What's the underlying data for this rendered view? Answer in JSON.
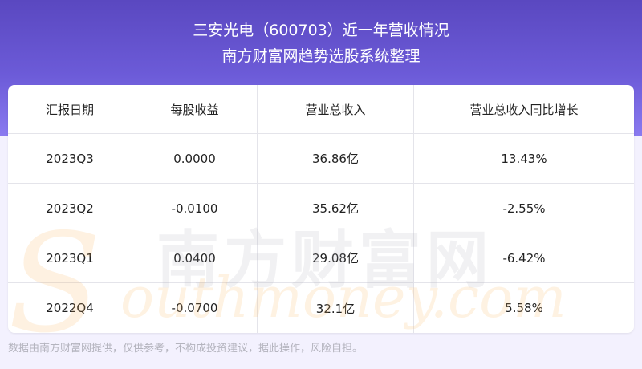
{
  "header": {
    "title_line1": "三安光电（600703）近一年营收情况",
    "title_line2": "南方财富网趋势选股系统整理"
  },
  "table": {
    "columns": [
      "汇报日期",
      "每股收益",
      "营业总收入",
      "营业总收入同比增长"
    ],
    "rows": [
      [
        "2023Q3",
        "0.0000",
        "36.86亿",
        "13.43%"
      ],
      [
        "2023Q2",
        "-0.0100",
        "35.62亿",
        "-2.55%"
      ],
      [
        "2023Q1",
        "0.0400",
        "29.08亿",
        "-6.42%"
      ],
      [
        "2022Q4",
        "-0.0700",
        "32.1亿",
        "5.58%"
      ]
    ]
  },
  "watermark": {
    "cn": "南方财富网",
    "en": "Southmoney.com"
  },
  "footer": {
    "disclaimer": "数据由南方财富网提供，仅供参考，不构成投资建议，据此操作，风险自担。"
  },
  "colors": {
    "header_top": "#5a48c0",
    "header_bottom": "#8a7af0",
    "background": "#f3f1fe"
  }
}
